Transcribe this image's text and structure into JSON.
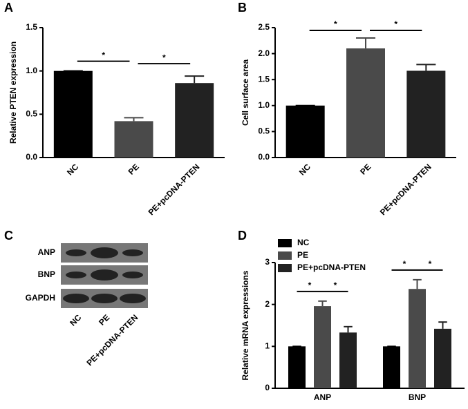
{
  "chart_data": [
    {
      "type": "bar",
      "panel": "A",
      "ylabel": "Relative PTEN expression",
      "categories": [
        "NC",
        "PE",
        "PE+pcDNA-PTEN"
      ],
      "values": [
        1.0,
        0.42,
        0.86
      ],
      "errors": [
        0,
        0.04,
        0.08
      ],
      "colors": [
        "#000000",
        "#4a4a4a",
        "#222222"
      ],
      "ylim": [
        0,
        1.5
      ],
      "yticks": [
        {
          "value": 0,
          "label": "0.0"
        },
        {
          "value": 0.5,
          "label": "0.5"
        },
        {
          "value": 1,
          "label": "1.0"
        },
        {
          "value": 1.5,
          "label": "1.5"
        }
      ],
      "annotations": [
        {
          "text": "*",
          "between": [
            "NC",
            "PE"
          ]
        },
        {
          "text": "*",
          "between": [
            "PE",
            "PE+pcDNA-PTEN"
          ]
        }
      ]
    },
    {
      "type": "bar",
      "panel": "B",
      "ylabel": "Cell surface area",
      "categories": [
        "NC",
        "PE",
        "PE+pcDNA-PTEN"
      ],
      "values": [
        1.0,
        2.1,
        1.67
      ],
      "errors": [
        0,
        0.2,
        0.12
      ],
      "colors": [
        "#000000",
        "#4a4a4a",
        "#222222"
      ],
      "ylim": [
        0,
        2.5
      ],
      "yticks": [
        {
          "value": 0,
          "label": "0.0"
        },
        {
          "value": 0.5,
          "label": "0.5"
        },
        {
          "value": 1,
          "label": "1.0"
        },
        {
          "value": 1.5,
          "label": "1.5"
        },
        {
          "value": 2,
          "label": "2.0"
        },
        {
          "value": 2.5,
          "label": "2.5"
        }
      ],
      "annotations": [
        {
          "text": "*",
          "between": [
            "NC",
            "PE"
          ]
        },
        {
          "text": "*",
          "between": [
            "PE",
            "PE+pcDNA-PTEN"
          ]
        }
      ]
    },
    {
      "type": "grouped-bar",
      "panel": "D",
      "ylabel": "Relative mRNA expressions",
      "categories": [
        "ANP",
        "BNP"
      ],
      "series": [
        {
          "name": "NC",
          "color": "#000000",
          "values": [
            1,
            1
          ],
          "errors": [
            0,
            0
          ]
        },
        {
          "name": "PE",
          "color": "#4a4a4a",
          "values": [
            1.96,
            2.37
          ],
          "errors": [
            0.12,
            0.22
          ]
        },
        {
          "name": "PE+pcDNA-PTEN",
          "color": "#222222",
          "values": [
            1.33,
            1.42
          ],
          "errors": [
            0.14,
            0.16
          ]
        }
      ],
      "ylim": [
        0,
        3
      ],
      "yticks": [
        0,
        1,
        2,
        3
      ],
      "annotations": [
        {
          "text": "*",
          "group": "ANP",
          "between": [
            "NC",
            "PE"
          ]
        },
        {
          "text": "*",
          "group": "ANP",
          "between": [
            "PE",
            "PE+pcDNA-PTEN"
          ]
        },
        {
          "text": "*",
          "group": "BNP",
          "between": [
            "NC",
            "PE"
          ]
        },
        {
          "text": "*",
          "group": "BNP",
          "between": [
            "PE",
            "PE+pcDNA-PTEN"
          ]
        }
      ]
    }
  ],
  "blot": {
    "panel": "C",
    "rows": [
      "ANP",
      "BNP",
      "GAPDH"
    ],
    "lanes": [
      "NC",
      "PE",
      "PE+pcDNA-PTEN"
    ]
  }
}
